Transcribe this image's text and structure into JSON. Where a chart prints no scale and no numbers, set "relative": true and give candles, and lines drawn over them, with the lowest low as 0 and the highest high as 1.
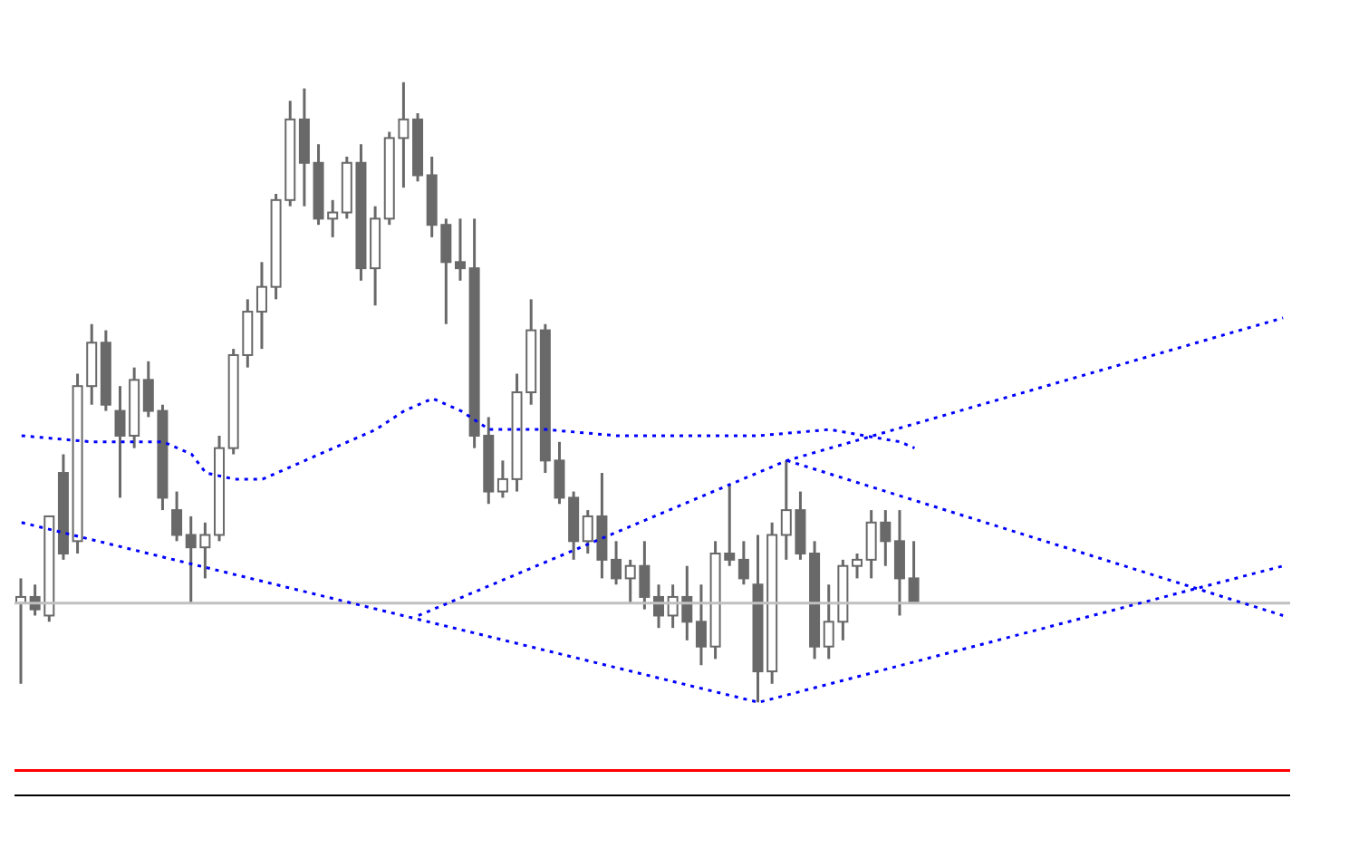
{
  "chart_data": {
    "type": "candlestick",
    "relative": true,
    "color": "#696969",
    "line_style": "dotted",
    "categories": [
      null,
      null,
      null,
      null,
      null,
      null,
      null,
      null,
      null,
      null,
      null,
      null,
      null,
      null,
      null,
      null,
      null,
      null,
      null,
      null,
      null,
      null,
      null,
      null,
      null,
      null,
      null,
      null,
      null,
      null,
      null,
      null,
      null,
      null,
      null,
      null,
      null,
      null,
      null,
      null,
      null,
      null,
      null,
      null,
      null,
      null,
      null,
      null,
      null,
      null,
      null,
      null,
      null,
      null,
      null,
      null,
      null,
      null,
      null,
      null,
      null,
      null,
      null,
      null,
      null,
      null,
      null,
      null,
      null,
      null,
      null,
      null,
      null,
      null,
      null,
      null,
      null,
      null,
      null,
      null,
      null,
      null,
      null,
      null,
      null,
      null,
      null,
      null,
      null,
      null
    ],
    "ohlc": [
      [
        0.16,
        0.2,
        0.03,
        0.17
      ],
      [
        0.17,
        0.19,
        0.14,
        0.15
      ],
      [
        0.14,
        0.3,
        0.13,
        0.3
      ],
      [
        0.37,
        0.4,
        0.23,
        0.24
      ],
      [
        0.26,
        0.53,
        0.24,
        0.51
      ],
      [
        0.51,
        0.61,
        0.48,
        0.58
      ],
      [
        0.58,
        0.6,
        0.47,
        0.48
      ],
      [
        0.47,
        0.51,
        0.33,
        0.43
      ],
      [
        0.43,
        0.54,
        0.41,
        0.52
      ],
      [
        0.52,
        0.55,
        0.46,
        0.47
      ],
      [
        0.47,
        0.48,
        0.31,
        0.33
      ],
      [
        0.31,
        0.34,
        0.26,
        0.27
      ],
      [
        0.27,
        0.3,
        0.16,
        0.25
      ],
      [
        0.25,
        0.29,
        0.2,
        0.27
      ],
      [
        0.27,
        0.43,
        0.26,
        0.41
      ],
      [
        0.41,
        0.57,
        0.4,
        0.56
      ],
      [
        0.56,
        0.65,
        0.54,
        0.63
      ],
      [
        0.63,
        0.71,
        0.57,
        0.67
      ],
      [
        0.67,
        0.82,
        0.65,
        0.81
      ],
      [
        0.81,
        0.97,
        0.8,
        0.94
      ],
      [
        0.94,
        0.99,
        0.8,
        0.87
      ],
      [
        0.87,
        0.9,
        0.77,
        0.78
      ],
      [
        0.78,
        0.81,
        0.75,
        0.79
      ],
      [
        0.79,
        0.88,
        0.78,
        0.87
      ],
      [
        0.87,
        0.9,
        0.68,
        0.7
      ],
      [
        0.7,
        0.8,
        0.64,
        0.78
      ],
      [
        0.78,
        0.92,
        0.77,
        0.91
      ],
      [
        0.91,
        1,
        0.83,
        0.94
      ],
      [
        0.94,
        0.95,
        0.84,
        0.85
      ],
      [
        0.85,
        0.88,
        0.75,
        0.77
      ],
      [
        0.77,
        0.78,
        0.61,
        0.71
      ],
      [
        0.71,
        0.78,
        0.68,
        0.7
      ],
      [
        0.7,
        0.78,
        0.41,
        0.43
      ],
      [
        0.43,
        0.46,
        0.32,
        0.34
      ],
      [
        0.34,
        0.39,
        0.33,
        0.36
      ],
      [
        0.36,
        0.53,
        0.34,
        0.5
      ],
      [
        0.5,
        0.65,
        0.48,
        0.6
      ],
      [
        0.6,
        0.61,
        0.37,
        0.39
      ],
      [
        0.39,
        0.42,
        0.32,
        0.33
      ],
      [
        0.33,
        0.34,
        0.23,
        0.26
      ],
      [
        0.26,
        0.31,
        0.24,
        0.3
      ],
      [
        0.3,
        0.37,
        0.2,
        0.23
      ],
      [
        0.23,
        0.26,
        0.19,
        0.2
      ],
      [
        0.2,
        0.23,
        0.16,
        0.22
      ],
      [
        0.22,
        0.26,
        0.15,
        0.17
      ],
      [
        0.17,
        0.19,
        0.12,
        0.14
      ],
      [
        0.14,
        0.19,
        0.12,
        0.17
      ],
      [
        0.17,
        0.22,
        0.1,
        0.13
      ],
      [
        0.13,
        0.19,
        0.06,
        0.09
      ],
      [
        0.09,
        0.26,
        0.07,
        0.24
      ],
      [
        0.24,
        0.35,
        0.22,
        0.23
      ],
      [
        0.23,
        0.26,
        0.19,
        0.2
      ],
      [
        0.19,
        0.27,
        0,
        0.05
      ],
      [
        0.05,
        0.29,
        0.03,
        0.27
      ],
      [
        0.27,
        0.39,
        0.23,
        0.31
      ],
      [
        0.31,
        0.34,
        0.23,
        0.24
      ],
      [
        0.24,
        0.26,
        0.07,
        0.09
      ],
      [
        0.09,
        0.19,
        0.07,
        0.13
      ],
      [
        0.13,
        0.23,
        0.1,
        0.22
      ],
      [
        0.22,
        0.24,
        0.2,
        0.23
      ],
      [
        0.23,
        0.31,
        0.2,
        0.29
      ],
      [
        0.29,
        0.31,
        0.22,
        0.26
      ],
      [
        0.26,
        0.31,
        0.14,
        0.2
      ],
      [
        0.2,
        0.26,
        0.16,
        0.16
      ],
      null,
      null,
      null,
      null,
      null,
      null,
      null,
      null,
      null,
      null,
      null,
      null,
      null,
      null,
      null,
      null,
      null,
      null,
      null,
      null,
      null,
      null,
      null,
      null,
      null,
      null
    ],
    "series": [
      {
        "type": "line",
        "color": "#0000ff",
        "values": [
          0.29,
          null,
          null,
          null,
          null,
          null,
          null,
          null,
          null,
          null,
          null,
          null,
          null,
          null,
          null,
          null,
          null,
          null,
          null,
          null,
          null,
          null,
          null,
          null,
          null,
          null,
          null,
          null,
          null,
          null,
          null,
          null,
          null,
          null,
          null,
          null,
          null,
          null,
          null,
          null,
          null,
          null,
          null,
          null,
          null,
          null,
          null,
          null,
          null,
          null,
          null,
          null,
          0,
          null,
          null,
          null,
          null,
          null,
          null,
          null,
          null,
          null,
          null,
          null,
          null,
          null,
          null,
          null,
          null,
          null,
          null,
          null,
          null,
          null,
          null,
          null,
          null,
          null,
          null,
          null,
          null,
          null,
          null,
          null,
          null,
          null,
          null,
          null,
          null,
          0.22
        ]
      },
      {
        "type": "line",
        "color": "#0000ff",
        "values": [
          null,
          null,
          null,
          null,
          null,
          null,
          null,
          null,
          null,
          null,
          null,
          null,
          null,
          null,
          null,
          null,
          null,
          null,
          null,
          null,
          null,
          null,
          null,
          null,
          null,
          null,
          null,
          null,
          0.14,
          null,
          null,
          null,
          null,
          null,
          null,
          null,
          null,
          null,
          null,
          null,
          null,
          null,
          null,
          null,
          null,
          null,
          null,
          null,
          null,
          null,
          null,
          null,
          null,
          null,
          0.39,
          null,
          null,
          null,
          null,
          null,
          null,
          null,
          null,
          null,
          null,
          null,
          null,
          null,
          null,
          null,
          null,
          null,
          null,
          null,
          null,
          null,
          null,
          null,
          null,
          null,
          null,
          null,
          null,
          null,
          null,
          null,
          null,
          null,
          null,
          0.62
        ]
      },
      {
        "type": "line",
        "color": "#0000ff",
        "values": [
          null,
          null,
          null,
          null,
          null,
          null,
          null,
          null,
          null,
          null,
          null,
          null,
          null,
          null,
          null,
          null,
          null,
          null,
          null,
          null,
          null,
          null,
          null,
          null,
          null,
          null,
          null,
          null,
          null,
          null,
          null,
          null,
          null,
          null,
          null,
          null,
          null,
          null,
          null,
          null,
          null,
          null,
          null,
          null,
          null,
          null,
          null,
          null,
          null,
          null,
          null,
          null,
          null,
          null,
          0.39,
          null,
          null,
          null,
          null,
          null,
          null,
          null,
          null,
          null,
          null,
          null,
          null,
          null,
          null,
          null,
          null,
          null,
          null,
          null,
          null,
          null,
          null,
          null,
          null,
          null,
          null,
          null,
          null,
          null,
          null,
          null,
          null,
          null,
          null,
          0.14
        ]
      },
      {
        "type": "line",
        "color": "#0000ff",
        "values": [
          0.43,
          null,
          null,
          null,
          null,
          0.42,
          null,
          null,
          null,
          null,
          0.42,
          null,
          0.4,
          0.37,
          null,
          0.36,
          null,
          0.36,
          null,
          null,
          0.39,
          null,
          0.41,
          null,
          null,
          0.44,
          null,
          0.47,
          null,
          0.49,
          null,
          0.47,
          null,
          0.44,
          null,
          null,
          null,
          0.44,
          null,
          null,
          null,
          null,
          0.43,
          null,
          null,
          null,
          null,
          0.43,
          null,
          null,
          null,
          null,
          0.43,
          null,
          null,
          null,
          null,
          0.44,
          null,
          null,
          null,
          null,
          0.42,
          0.41,
          null,
          null,
          null,
          null,
          null,
          null,
          null,
          null,
          null,
          null,
          null,
          null,
          null,
          null,
          null,
          null,
          null,
          null,
          null,
          null,
          null,
          null,
          null,
          null,
          null,
          null
        ]
      }
    ],
    "ref_lines": [
      {
        "axis": "y",
        "value": 0.16,
        "color": "#c0c0c0"
      },
      {
        "axis": "y",
        "value": -0.11,
        "color": "#ff0000"
      }
    ]
  }
}
